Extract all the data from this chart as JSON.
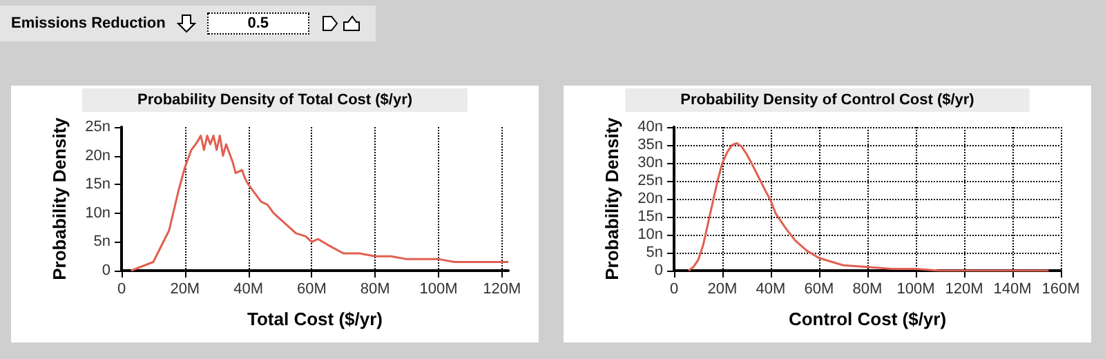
{
  "chart_data": [
    {
      "type": "other",
      "title": "Emissions Reduction",
      "annotations": [
        "0.5"
      ]
    },
    {
      "type": "line",
      "title": "Probability Density of Total Cost ($/yr)",
      "xlabel": "Total Cost ($/yr)",
      "ylabel": "Probability Density",
      "grid": "x",
      "marker": "none",
      "line_style": "solid",
      "xlim": [
        0,
        122
      ],
      "xticks": [
        0,
        {
          "value": 20,
          "label": "20M"
        },
        {
          "value": 40,
          "label": "40M"
        },
        {
          "value": 60,
          "label": "60M"
        },
        {
          "value": 80,
          "label": "80M"
        },
        {
          "value": 100,
          "label": "100M"
        },
        {
          "value": 120,
          "label": "120M"
        }
      ],
      "ylim": [
        0,
        25
      ],
      "yticks": [
        0,
        {
          "value": 5,
          "label": "5n"
        },
        {
          "value": 10,
          "label": "10n"
        },
        {
          "value": 15,
          "label": "15n"
        },
        {
          "value": 20,
          "label": "20n"
        },
        {
          "value": 25,
          "label": "25n"
        }
      ],
      "series": [
        {
          "color": "#e06050",
          "x": [
            3,
            10,
            15,
            18,
            20,
            22,
            24,
            25,
            26,
            27,
            28,
            29,
            30,
            31,
            32,
            33,
            34,
            35,
            36,
            38,
            39,
            40,
            42,
            44,
            46,
            48,
            50,
            52,
            55,
            58,
            60,
            62,
            65,
            70,
            75,
            80,
            85,
            90,
            100,
            105,
            110,
            122
          ],
          "values": [
            0,
            1.5,
            7,
            14,
            18,
            21,
            22.5,
            23.5,
            21,
            23.5,
            22,
            23.5,
            21,
            23.5,
            20,
            22,
            20.5,
            19,
            17,
            17.5,
            16,
            15,
            13.5,
            12,
            11.5,
            10,
            9,
            8,
            6.5,
            6,
            5,
            5.5,
            4.5,
            3,
            3,
            2.5,
            2.5,
            2,
            2,
            1.5,
            1.5,
            1.5
          ]
        }
      ]
    },
    {
      "type": "line",
      "title": "Probability Density of Control Cost ($/yr)",
      "xlabel": "Control Cost ($/yr)",
      "ylabel": "Probability Density",
      "grid": true,
      "marker": "none",
      "line_style": "solid",
      "xlim": [
        0,
        160
      ],
      "xticks": [
        0,
        {
          "value": 20,
          "label": "20M"
        },
        {
          "value": 40,
          "label": "40M"
        },
        {
          "value": 60,
          "label": "60M"
        },
        {
          "value": 80,
          "label": "80M"
        },
        {
          "value": 100,
          "label": "100M"
        },
        {
          "value": 120,
          "label": "120M"
        },
        {
          "value": 140,
          "label": "140M"
        },
        {
          "value": 160,
          "label": "160M"
        }
      ],
      "ylim": [
        0,
        40
      ],
      "yticks": [
        0,
        {
          "value": 5,
          "label": "5n"
        },
        {
          "value": 10,
          "label": "10n"
        },
        {
          "value": 15,
          "label": "15n"
        },
        {
          "value": 20,
          "label": "20n"
        },
        {
          "value": 25,
          "label": "25n"
        },
        {
          "value": 30,
          "label": "30n"
        },
        {
          "value": 35,
          "label": "35n"
        },
        {
          "value": 40,
          "label": "40n"
        }
      ],
      "series": [
        {
          "color": "#e06050",
          "x": [
            6,
            8,
            10,
            12,
            14,
            16,
            18,
            20,
            22,
            24,
            26,
            28,
            30,
            32,
            35,
            38,
            40,
            42,
            46,
            50,
            55,
            60,
            65,
            70,
            80,
            90,
            100,
            110,
            130,
            155
          ],
          "values": [
            0,
            1,
            3,
            7,
            13,
            19,
            25,
            30,
            33,
            35,
            35.5,
            34.5,
            32.5,
            30,
            26,
            22,
            19.5,
            16,
            12,
            8.5,
            5.5,
            3.5,
            2.5,
            1.5,
            1,
            0.5,
            0.5,
            0,
            0,
            0
          ]
        }
      ]
    }
  ]
}
